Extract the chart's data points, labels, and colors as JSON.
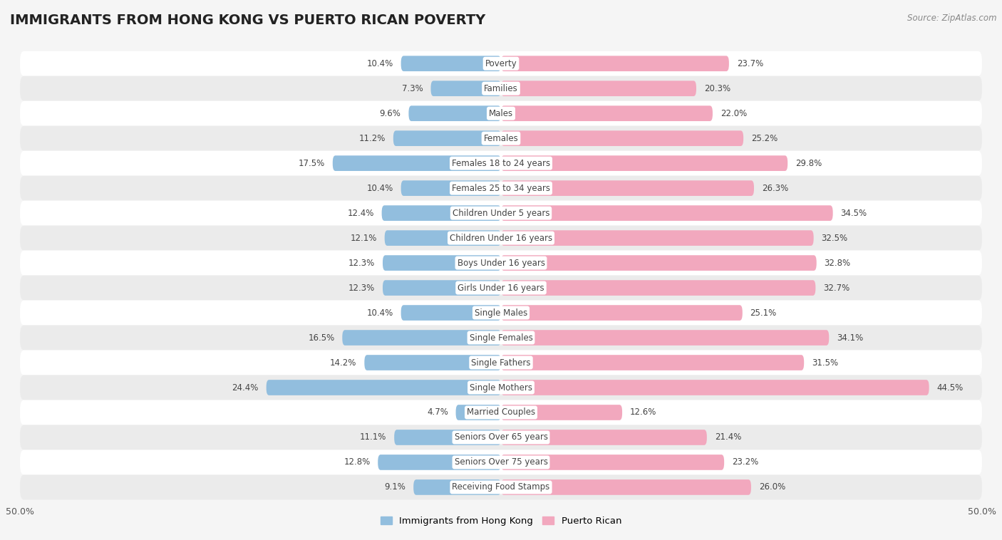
{
  "title": "IMMIGRANTS FROM HONG KONG VS PUERTO RICAN POVERTY",
  "source": "Source: ZipAtlas.com",
  "categories": [
    "Poverty",
    "Families",
    "Males",
    "Females",
    "Females 18 to 24 years",
    "Females 25 to 34 years",
    "Children Under 5 years",
    "Children Under 16 years",
    "Boys Under 16 years",
    "Girls Under 16 years",
    "Single Males",
    "Single Females",
    "Single Fathers",
    "Single Mothers",
    "Married Couples",
    "Seniors Over 65 years",
    "Seniors Over 75 years",
    "Receiving Food Stamps"
  ],
  "hk_values": [
    10.4,
    7.3,
    9.6,
    11.2,
    17.5,
    10.4,
    12.4,
    12.1,
    12.3,
    12.3,
    10.4,
    16.5,
    14.2,
    24.4,
    4.7,
    11.1,
    12.8,
    9.1
  ],
  "pr_values": [
    23.7,
    20.3,
    22.0,
    25.2,
    29.8,
    26.3,
    34.5,
    32.5,
    32.8,
    32.7,
    25.1,
    34.1,
    31.5,
    44.5,
    12.6,
    21.4,
    23.2,
    26.0
  ],
  "hk_color": "#92bede",
  "pr_color": "#f2a8be",
  "background_color": "#f5f5f5",
  "row_color_light": "#ffffff",
  "row_color_dark": "#ebebeb",
  "max_val": 50.0,
  "legend_hk": "Immigrants from Hong Kong",
  "legend_pr": "Puerto Rican",
  "title_fontsize": 14,
  "label_fontsize": 8.5,
  "value_fontsize": 8.5
}
